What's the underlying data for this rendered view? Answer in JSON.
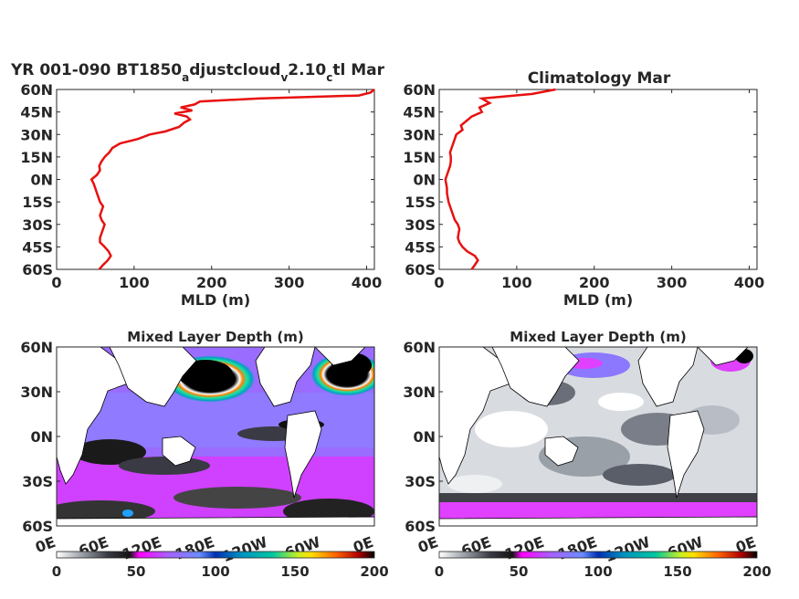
{
  "colors": {
    "profile_line": "#e81010",
    "axis": "#262626",
    "land": "#ffffff",
    "coast": "#000000"
  },
  "chart_data": [
    {
      "type": "line",
      "title": "YR 001-090 BT1850",
      "title_sub1": "a",
      "title_mid1": "djustcloud",
      "title_sub2": "v",
      "title_mid2": "2.10",
      "title_sub3": "c",
      "title_end": "tl Mar",
      "xlabel": "MLD (m)",
      "ylabel": "",
      "xlim": [
        0,
        410
      ],
      "ylim": [
        -60,
        60
      ],
      "xticks": [
        0,
        100,
        200,
        300,
        400
      ],
      "yticks": [
        60,
        45,
        30,
        15,
        0,
        -15,
        -30,
        -45,
        -60
      ],
      "ytick_labels": [
        "60N",
        "45N",
        "30N",
        "15N",
        "0N",
        "15S",
        "30S",
        "45S",
        "60S"
      ],
      "series": [
        {
          "lat": [
            -60,
            -57,
            -54,
            -51,
            -48,
            -45,
            -42,
            -39,
            -36,
            -33,
            -30,
            -27,
            -24,
            -21,
            -18,
            -15,
            -12,
            -9,
            -6,
            -3,
            0,
            3,
            6,
            9,
            12,
            15,
            18,
            21,
            24,
            27,
            30,
            32,
            35,
            38,
            40,
            42,
            44,
            46,
            48,
            50,
            52,
            54,
            56,
            58,
            60
          ],
          "mld": [
            55,
            60,
            66,
            70,
            67,
            62,
            56,
            56,
            58,
            60,
            62,
            58,
            56,
            58,
            60,
            56,
            54,
            52,
            50,
            48,
            45,
            52,
            56,
            55,
            58,
            62,
            68,
            72,
            82,
            105,
            120,
            140,
            158,
            165,
            172,
            168,
            152,
            175,
            160,
            178,
            185,
            260,
            390,
            405,
            410
          ]
        }
      ]
    },
    {
      "type": "line",
      "title": "Climatology Mar",
      "xlabel": "MLD (m)",
      "ylabel": "",
      "xlim": [
        0,
        410
      ],
      "ylim": [
        -60,
        60
      ],
      "xticks": [
        0,
        100,
        200,
        300,
        400
      ],
      "yticks": [
        60,
        45,
        30,
        15,
        0,
        -15,
        -30,
        -45,
        -60
      ],
      "ytick_labels": [
        "60N",
        "45N",
        "30N",
        "15N",
        "0N",
        "15S",
        "30S",
        "45S",
        "60S"
      ],
      "series": [
        {
          "lat": [
            -60,
            -57,
            -54,
            -51,
            -48,
            -45,
            -42,
            -39,
            -36,
            -33,
            -30,
            -27,
            -24,
            -21,
            -18,
            -15,
            -12,
            -9,
            -6,
            -3,
            0,
            3,
            6,
            9,
            12,
            15,
            18,
            21,
            24,
            27,
            30,
            33,
            36,
            39,
            42,
            45,
            48,
            51,
            54,
            57,
            60
          ],
          "mld": [
            42,
            46,
            50,
            46,
            36,
            30,
            26,
            24,
            25,
            26,
            24,
            20,
            18,
            16,
            14,
            12,
            11,
            10,
            10,
            9,
            8,
            10,
            12,
            14,
            15,
            15,
            14,
            16,
            18,
            20,
            22,
            30,
            28,
            35,
            42,
            55,
            52,
            65,
            55,
            120,
            150
          ]
        }
      ]
    },
    {
      "type": "heatmap",
      "title": "Mixed Layer Depth (m)",
      "yticks": [
        60,
        30,
        0,
        -30,
        -60
      ],
      "ytick_labels": [
        "60N",
        "30N",
        "0N",
        "30S",
        "60S"
      ],
      "xtick_labels": [
        "0E",
        "60E",
        "120E",
        "180E",
        "120W",
        "60W",
        "0E"
      ],
      "colorbar_ticks": [
        "0",
        "50",
        "100",
        "150",
        "200"
      ],
      "clim": [
        0,
        200
      ],
      "colormap": [
        "#ffffff",
        "#4a4a54",
        "#101010",
        "#ff00ff",
        "#8c78ff",
        "#0040c0",
        "#00c0c0",
        "#20e080",
        "#f8f020",
        "#ff8000",
        "#c00000",
        "#000000"
      ]
    },
    {
      "type": "heatmap",
      "title": "Mixed Layer Depth (m)",
      "yticks": [
        60,
        30,
        0,
        -30,
        -60
      ],
      "ytick_labels": [
        "60N",
        "30N",
        "0N",
        "30S",
        "60S"
      ],
      "xtick_labels": [
        "0E",
        "60E",
        "120E",
        "180E",
        "120W",
        "60W",
        "0E"
      ],
      "colorbar_ticks": [
        "0",
        "50",
        "100",
        "150",
        "200"
      ],
      "clim": [
        0,
        200
      ],
      "colormap": [
        "#ffffff",
        "#4a4a54",
        "#101010",
        "#ff00ff",
        "#8c78ff",
        "#0040c0",
        "#00c0c0",
        "#20e080",
        "#f8f020",
        "#ff8000",
        "#c00000",
        "#000000"
      ]
    }
  ]
}
